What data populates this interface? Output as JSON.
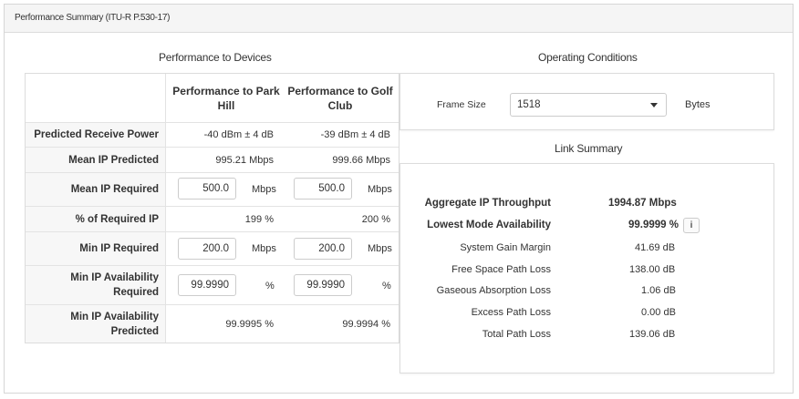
{
  "panel": {
    "title": "Performance Summary (ITU-R P.530-17)"
  },
  "devices": {
    "title": "Performance to Devices",
    "col1_header": "Performance to Park Hill",
    "col2_header": "Performance to Golf Club",
    "rows": {
      "predicted_receive_power": {
        "label": "Predicted Receive Power",
        "v1": "-40 dBm ± 4 dB",
        "v2": "-39 dBm ± 4 dB"
      },
      "mean_ip_predicted": {
        "label": "Mean IP Predicted",
        "v1": "995.21 Mbps",
        "v2": "999.66 Mbps"
      },
      "mean_ip_required": {
        "label": "Mean IP Required",
        "v1": "500.0",
        "v2": "500.0",
        "unit": "Mbps"
      },
      "pct_required_ip": {
        "label": "% of Required IP",
        "v1": "199 %",
        "v2": "200 %"
      },
      "min_ip_required": {
        "label": "Min IP Required",
        "v1": "200.0",
        "v2": "200.0",
        "unit": "Mbps"
      },
      "min_ip_avail_required": {
        "label": "Min IP Availability Required",
        "v1": "99.9990",
        "v2": "99.9990",
        "unit": "%"
      },
      "min_ip_avail_predicted": {
        "label": "Min IP Availability Predicted",
        "v1": "99.9995 %",
        "v2": "99.9994 %"
      }
    }
  },
  "operating": {
    "title": "Operating Conditions",
    "frame_size_label": "Frame Size",
    "frame_size_value": "1518",
    "frame_size_unit": "Bytes"
  },
  "link": {
    "title": "Link Summary",
    "items": [
      {
        "label": "Aggregate IP Throughput",
        "value": "1994.87 Mbps"
      },
      {
        "label": "Lowest Mode Availability",
        "value": "99.9999 %"
      },
      {
        "label": "System Gain Margin",
        "value": "41.69 dB"
      },
      {
        "label": "Free Space Path Loss",
        "value": "138.00 dB"
      },
      {
        "label": "Gaseous Absorption Loss",
        "value": "1.06 dB"
      },
      {
        "label": "Excess Path Loss",
        "value": "0.00 dB"
      },
      {
        "label": "Total Path Loss",
        "value": "139.06 dB"
      }
    ],
    "info_glyph": "i"
  }
}
